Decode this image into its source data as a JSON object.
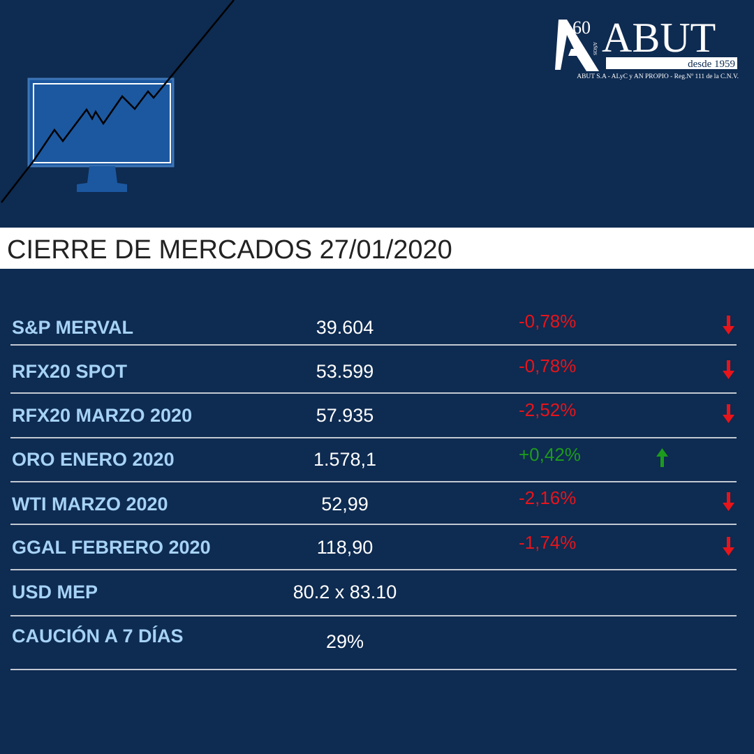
{
  "logo": {
    "years": "60",
    "years_word": "AÑOS",
    "name": "ABUT",
    "since": "desde 1959",
    "registry": "ABUT S.A - ALyC y AN PROPIO - Reg.Nº 111 de la C.N.V."
  },
  "title": "CIERRE DE MERCADOS 27/01/2020",
  "table": {
    "rows": [
      [
        "S&P MERVAL",
        "39.604",
        "-0,78%"
      ],
      [
        "RFX20 SPOT",
        "53.599",
        "-0,78%"
      ],
      [
        "RFX20 MARZO 2020",
        "57.935",
        "-2,52%"
      ],
      [
        "ORO ENERO 2020",
        "1.578,1",
        "+0,42%"
      ],
      [
        "WTI MARZO 2020",
        "52,99",
        "-2,16%"
      ],
      [
        "GGAL FEBRERO 2020",
        "118,90",
        "-1,74%"
      ],
      [
        "USD MEP",
        "80.2 x 83.10"
      ],
      [
        "CAUCIÓN A 7 DÍAS",
        "29%"
      ]
    ]
  }
}
